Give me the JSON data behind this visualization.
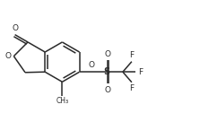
{
  "bg_color": "#ffffff",
  "line_color": "#2a2a2a",
  "line_width": 1.1,
  "figsize": [
    2.23,
    1.36
  ],
  "dpi": 100,
  "xlim": [
    0,
    10
  ],
  "ylim": [
    0,
    6
  ]
}
